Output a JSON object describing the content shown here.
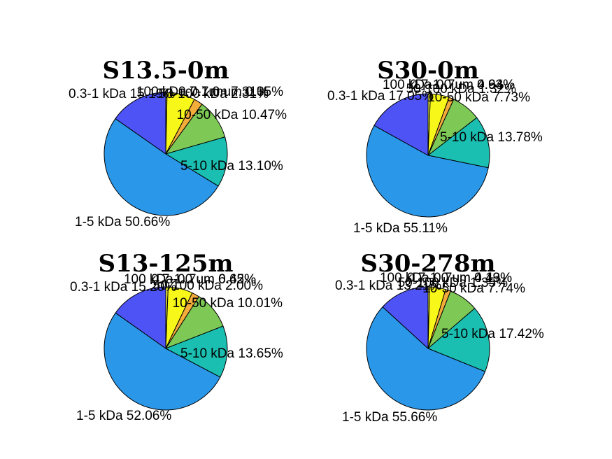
{
  "chart_data": [
    {
      "type": "pie",
      "title": "S13.5-0m",
      "slices": [
        {
          "name": "0.3-1 kDa",
          "value": 15.19,
          "label": "0.3-1 kDa  15.19%",
          "color": "#4d53f5"
        },
        {
          "name": "1-5 kDa",
          "value": 50.66,
          "label": "1-5 kDa  50.66%",
          "color": "#2a97e8"
        },
        {
          "name": "5-10 kDa",
          "value": 13.1,
          "label": "5-10 kDa  13.10%",
          "color": "#1bbfb2"
        },
        {
          "name": "10-50 kDa",
          "value": 10.47,
          "label": "10-50 kDa  10.47%",
          "color": "#7ec956"
        },
        {
          "name": "50-100 kDa",
          "value": 2.31,
          "label": "50-100 kDa  2.31%",
          "color": "#f4ac3b"
        },
        {
          "name": "100 kDa-0.7um",
          "value": 7.31,
          "label": "100 kDa-0.7um  7.31%",
          "color": "#f8f71a"
        },
        {
          "name": "0.7-1.0 um",
          "value": 0.35,
          "label": "0.7-1.0 um  0.35%",
          "color": "#fbfb3e"
        }
      ]
    },
    {
      "type": "pie",
      "title": "S30-0m",
      "slices": [
        {
          "name": "0.3-1 kDa",
          "value": 17.05,
          "label": "0.3-1 kDa  17.05%",
          "color": "#4d53f5"
        },
        {
          "name": "1-5 kDa",
          "value": 55.11,
          "label": "1-5 kDa  55.11%",
          "color": "#2a97e8"
        },
        {
          "name": "5-10 kDa",
          "value": 13.78,
          "label": "5-10 kDa  13.78%",
          "color": "#1bbfb2"
        },
        {
          "name": "10-50 kDa",
          "value": 7.73,
          "label": "10-50 kDa  7.73%",
          "color": "#7ec956"
        },
        {
          "name": "50-100 kDa",
          "value": 1.32,
          "label": "50-100 kDa  1.32%",
          "color": "#f4ac3b"
        },
        {
          "name": "100 kDa-0.7um",
          "value": 4.93,
          "label": "100 kDa-0.7um  4.93%",
          "color": "#f8f71a"
        },
        {
          "name": "0.7-1.0 um",
          "value": 0.64,
          "label": "0.7-1.0 um  0.64%",
          "color": "#fbfb3e"
        }
      ]
    },
    {
      "type": "pie",
      "title": "S13-125m",
      "slices": [
        {
          "name": "0.3-1 kDa",
          "value": 15.2,
          "label": "0.3-1 kDa  15.20%",
          "color": "#4d53f5"
        },
        {
          "name": "1-5 kDa",
          "value": 52.06,
          "label": "1-5 kDa  52.06%",
          "color": "#2a97e8"
        },
        {
          "name": "5-10 kDa",
          "value": 13.65,
          "label": "5-10 kDa  13.65%",
          "color": "#1bbfb2"
        },
        {
          "name": "10-50 kDa",
          "value": 10.01,
          "label": "10-50 kDa  10.01%",
          "color": "#7ec956"
        },
        {
          "name": "50-100 kDa",
          "value": 2.0,
          "label": "50-100 kDa  2.00%",
          "color": "#f4ac3b"
        },
        {
          "name": "100 kDa-0.7um",
          "value": 6.45,
          "label": "100 kDa-0.7um  6.45%",
          "color": "#f8f71a"
        },
        {
          "name": "0.7-1.0 um",
          "value": 0.62,
          "label": "0.7-1.0 um  0.62%",
          "color": "#fbfb3e"
        }
      ]
    },
    {
      "type": "pie",
      "title": "S30-278m",
      "slices": [
        {
          "name": "0.3-1 kDa",
          "value": 13.21,
          "label": "0.3-1 kDa  13.21%",
          "color": "#4d53f5"
        },
        {
          "name": "1-5 kDa",
          "value": 55.66,
          "label": "1-5 kDa  55.66%",
          "color": "#2a97e8"
        },
        {
          "name": "5-10 kDa",
          "value": 17.42,
          "label": "5-10 kDa  17.42%",
          "color": "#1bbfb2"
        },
        {
          "name": "10-50 kDa",
          "value": 7.74,
          "label": "10-50 kDa  7.74%",
          "color": "#7ec956"
        },
        {
          "name": "50-100 kDa",
          "value": 1.35,
          "label": "50-100 kDa  1.35%",
          "color": "#f4ac3b"
        },
        {
          "name": "100 kDa-0.7um",
          "value": 4.19,
          "label": "100 kDa-0.7um  4.19%",
          "color": "#f8f71a"
        },
        {
          "name": "0.7-1.0 um",
          "value": 0.43,
          "label": "0.7-1.0 um  0.43%",
          "color": "#fbfb3e"
        }
      ]
    }
  ]
}
